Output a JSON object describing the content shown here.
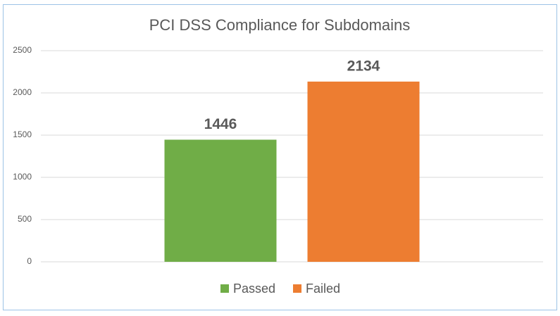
{
  "chart_data": {
    "type": "bar",
    "title": "PCI DSS Compliance for Subdomains",
    "categories": [
      null
    ],
    "series": [
      {
        "name": "Passed",
        "color": "#70ad47",
        "values": [
          1446
        ]
      },
      {
        "name": "Failed",
        "color": "#ed7d31",
        "values": [
          2134
        ]
      }
    ],
    "ylim": [
      0,
      2500
    ],
    "yticks": [
      0,
      500,
      1000,
      1500,
      2000,
      2500
    ],
    "grid": true,
    "legend": "bottom"
  }
}
